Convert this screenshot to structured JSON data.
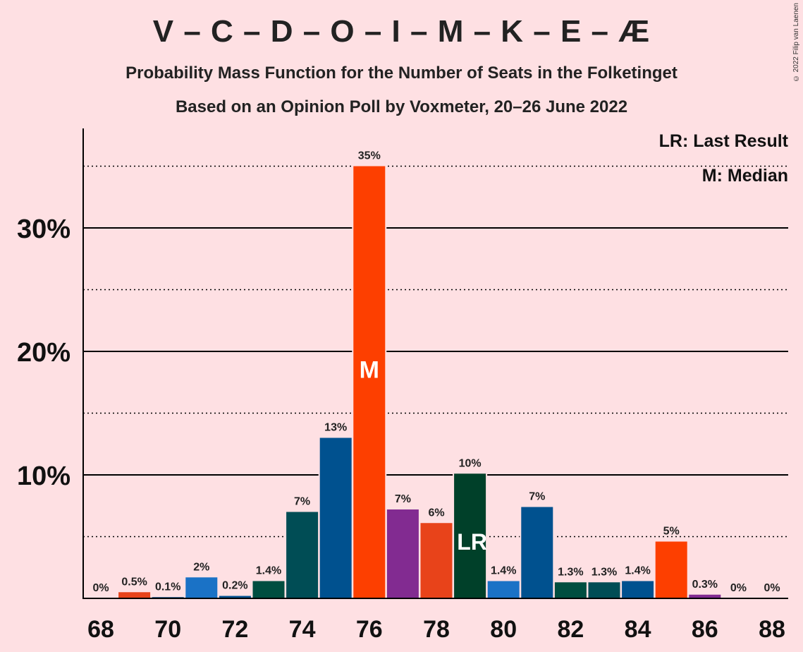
{
  "title": "V – C – D – O – I – M – K – E – Æ",
  "subtitle": "Probability Mass Function for the Number of Seats in the Folketinget",
  "subtitle2": "Based on an Opinion Poll by Voxmeter, 20–26 June 2022",
  "copyright": "© 2022 Filip van Laenen",
  "legend": {
    "last_result": "LR: Last Result",
    "median": "M: Median"
  },
  "colors": {
    "background": "#fee0e3",
    "axis": "#000000"
  },
  "chart_data": {
    "type": "bar",
    "xlabel": "",
    "ylabel": "",
    "ylim": [
      0,
      38
    ],
    "y_ticks": [
      {
        "value": 10,
        "label": "10%"
      },
      {
        "value": 20,
        "label": "20%"
      },
      {
        "value": 30,
        "label": "30%"
      }
    ],
    "y_dotted_lines": [
      5,
      15,
      25,
      35
    ],
    "x_ticks": [
      {
        "value": 68,
        "label": "68"
      },
      {
        "value": 70,
        "label": "70"
      },
      {
        "value": 72,
        "label": "72"
      },
      {
        "value": 74,
        "label": "74"
      },
      {
        "value": 76,
        "label": "76"
      },
      {
        "value": 78,
        "label": "78"
      },
      {
        "value": 80,
        "label": "80"
      },
      {
        "value": 82,
        "label": "82"
      },
      {
        "value": 84,
        "label": "84"
      },
      {
        "value": 86,
        "label": "86"
      },
      {
        "value": 88,
        "label": "88"
      }
    ],
    "grid": true,
    "legend_position": "top-right",
    "median_seat": 76,
    "median_marker": "M",
    "last_result_seat": 79,
    "last_result_marker": "LR",
    "bars": [
      {
        "seat": 68,
        "value": 0,
        "label": "0%",
        "color": "#fd3f00"
      },
      {
        "seat": 69,
        "value": 0.5,
        "label": "0.5%",
        "color": "#e8431a"
      },
      {
        "seat": 70,
        "value": 0.1,
        "label": "0.1%",
        "color": "#00407a"
      },
      {
        "seat": 71,
        "value": 1.7,
        "label": "2%",
        "color": "#1a72c6"
      },
      {
        "seat": 72,
        "value": 0.2,
        "label": "0.2%",
        "color": "#00508f"
      },
      {
        "seat": 73,
        "value": 1.4,
        "label": "1.4%",
        "color": "#004e40"
      },
      {
        "seat": 74,
        "value": 7.0,
        "label": "7%",
        "color": "#004d55"
      },
      {
        "seat": 75,
        "value": 13.0,
        "label": "13%",
        "color": "#00518f"
      },
      {
        "seat": 76,
        "value": 35.0,
        "label": "35%",
        "color": "#fd3f00"
      },
      {
        "seat": 77,
        "value": 7.2,
        "label": "7%",
        "color": "#822b91"
      },
      {
        "seat": 78,
        "value": 6.1,
        "label": "6%",
        "color": "#e8431a"
      },
      {
        "seat": 79,
        "value": 10.1,
        "label": "10%",
        "color": "#004029"
      },
      {
        "seat": 80,
        "value": 1.4,
        "label": "1.4%",
        "color": "#1a72c6"
      },
      {
        "seat": 81,
        "value": 7.4,
        "label": "7%",
        "color": "#00518f"
      },
      {
        "seat": 82,
        "value": 1.3,
        "label": "1.3%",
        "color": "#004e40"
      },
      {
        "seat": 83,
        "value": 1.3,
        "label": "1.3%",
        "color": "#004d55"
      },
      {
        "seat": 84,
        "value": 1.4,
        "label": "1.4%",
        "color": "#00518f"
      },
      {
        "seat": 85,
        "value": 4.6,
        "label": "5%",
        "color": "#fd3f00"
      },
      {
        "seat": 86,
        "value": 0.3,
        "label": "0.3%",
        "color": "#822b91"
      },
      {
        "seat": 87,
        "value": 0,
        "label": "0%",
        "color": "#e8431a"
      },
      {
        "seat": 88,
        "value": 0,
        "label": "0%",
        "color": "#004029"
      }
    ]
  }
}
